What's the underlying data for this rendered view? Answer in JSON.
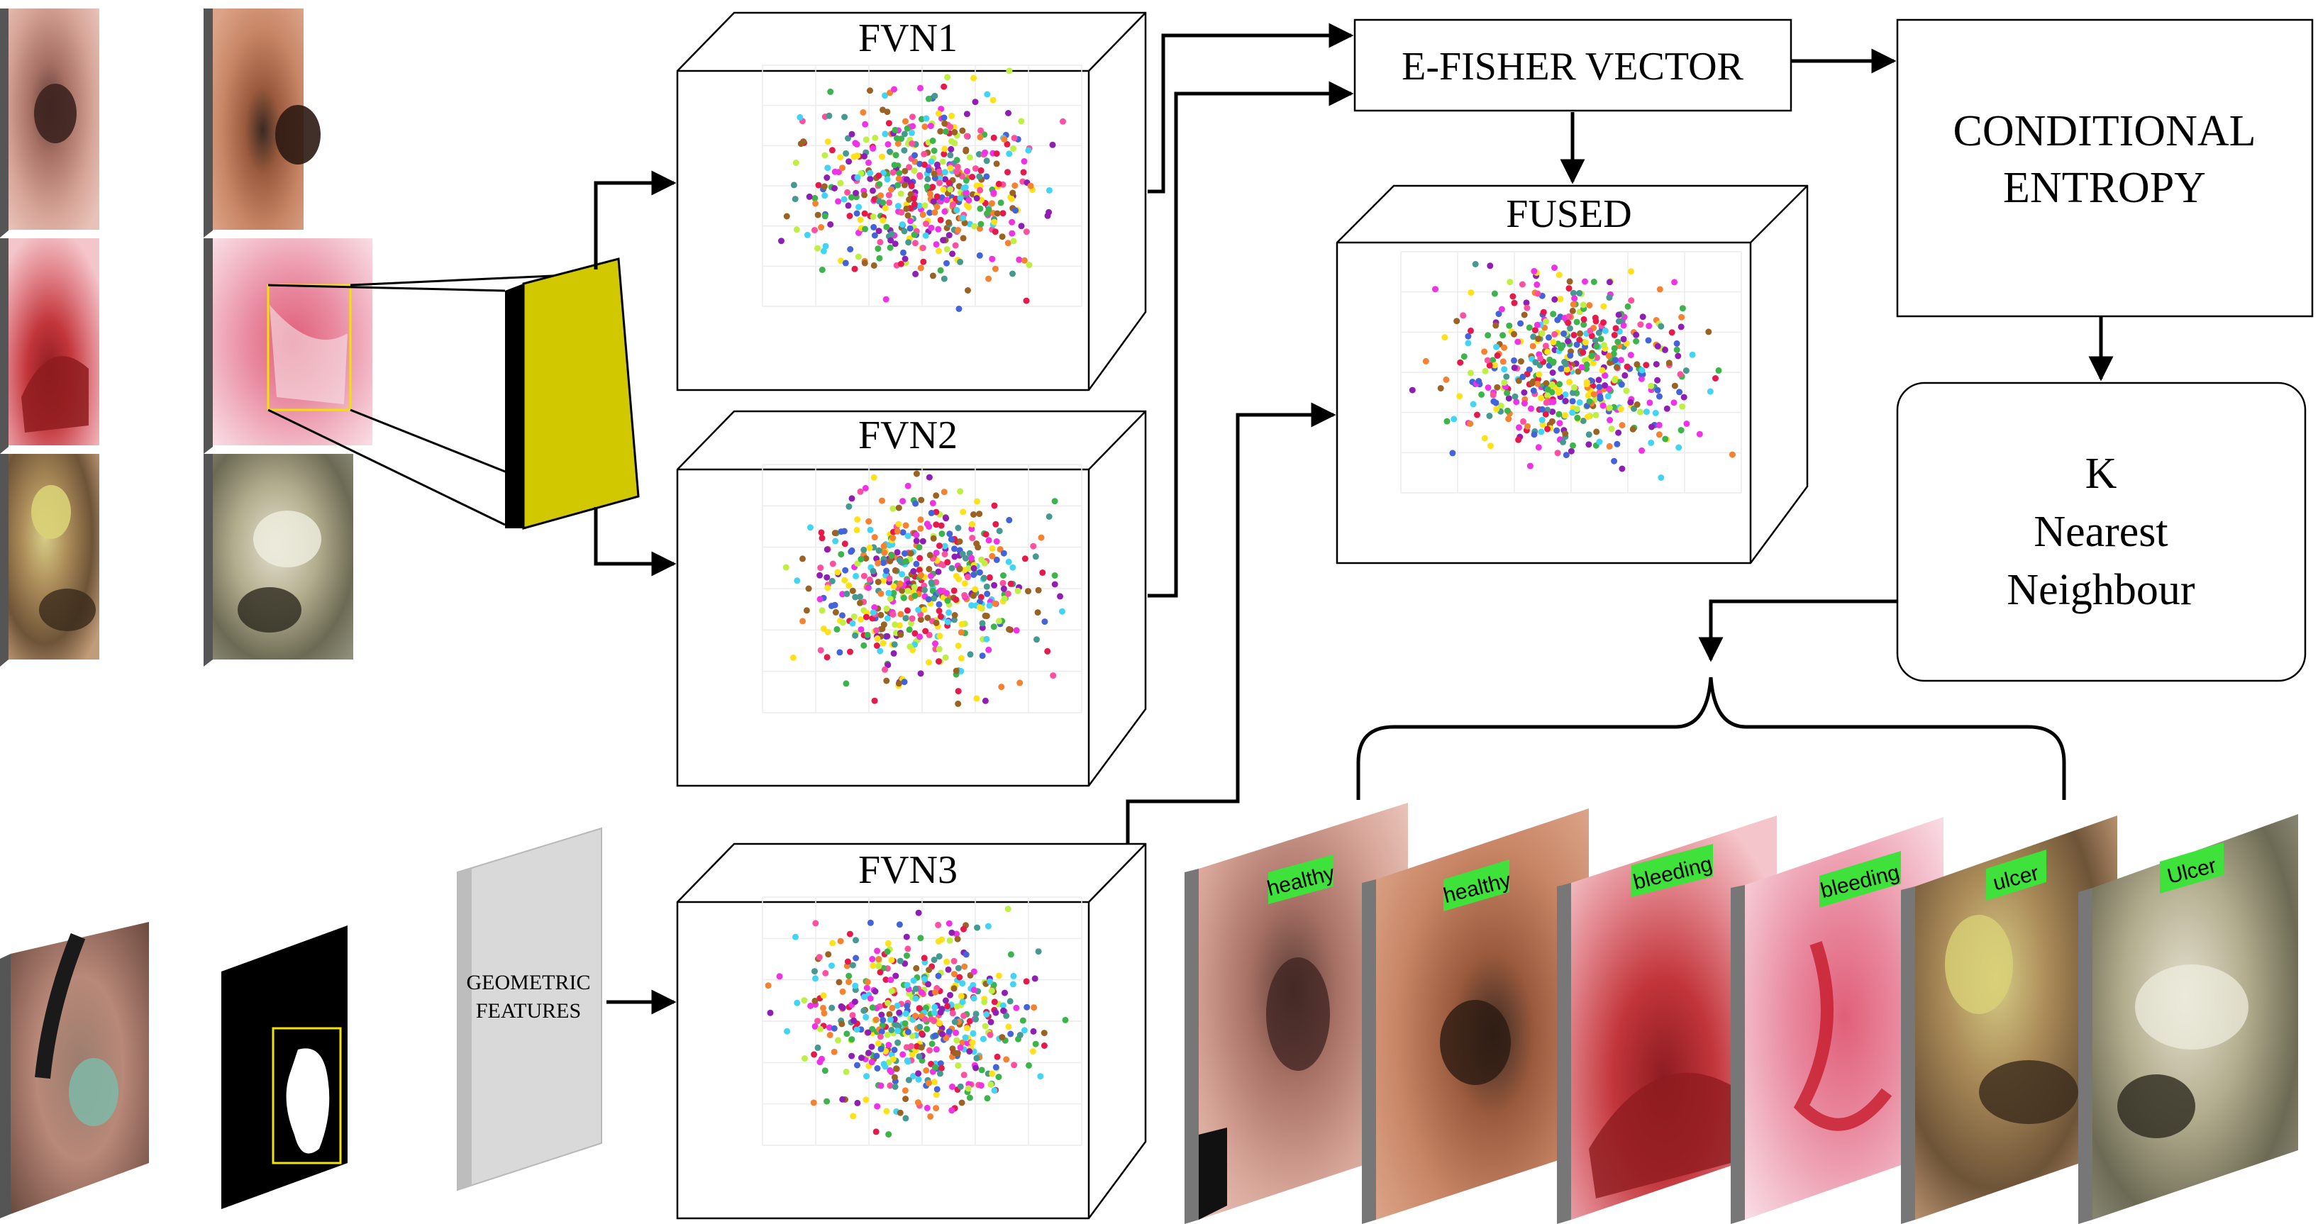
{
  "panels": {
    "fvn1": {
      "title": "FVN1"
    },
    "fvn2": {
      "title": "FVN2"
    },
    "fvn3": {
      "title": "FVN3"
    },
    "fused": {
      "title": "FUSED"
    }
  },
  "boxes": {
    "efisher": "E-FISHER VECTOR",
    "entropy_line1": "CONDITIONAL",
    "entropy_line2": "ENTROPY",
    "knn_line1": "K",
    "knn_line2": "Nearest",
    "knn_line3": "Neighbour",
    "geometric_line1": "GEOMETRIC",
    "geometric_line2": "FEATURES"
  },
  "output_labels": [
    "healthy",
    "healthy",
    "bleeding",
    "bleeding",
    "ulcer",
    "Ulcer"
  ],
  "colors": {
    "feature_block": "#d2c800",
    "label_tag": "#3ee23a",
    "scatter": [
      "#e6194b",
      "#3cb44b",
      "#f58231",
      "#4363d8",
      "#911eb4",
      "#42d4f4",
      "#f032e6",
      "#bfef45",
      "#ffe119",
      "#469990",
      "#9a6324",
      "#ff4fa0"
    ]
  },
  "icons": [
    "endoscopy-image",
    "segmentation-mask",
    "feature-block",
    "scatter-plot"
  ]
}
